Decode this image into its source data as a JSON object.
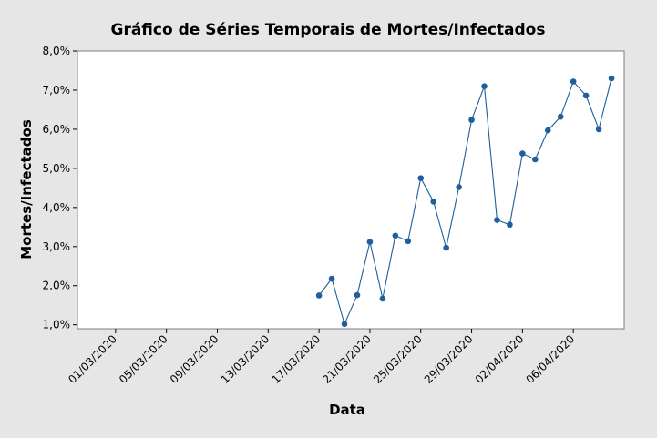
{
  "chart_data": {
    "type": "line",
    "title": "Gráfico de Séries Temporais de Mortes/Infectados",
    "xlabel": "Data",
    "ylabel": "Mortes/Infectados",
    "x_range": [
      "2020-02-27",
      "2020-04-10"
    ],
    "ylim": [
      0.9,
      8.0
    ],
    "yticks": [
      1.0,
      2.0,
      3.0,
      4.0,
      5.0,
      6.0,
      7.0,
      8.0
    ],
    "ytick_labels": [
      "1,0%",
      "2,0%",
      "3,0%",
      "4,0%",
      "5,0%",
      "6,0%",
      "7,0%",
      "8,0%"
    ],
    "xticks": [
      "2020-03-01",
      "2020-03-05",
      "2020-03-09",
      "2020-03-13",
      "2020-03-17",
      "2020-03-21",
      "2020-03-25",
      "2020-03-29",
      "2020-04-02",
      "2020-04-06"
    ],
    "xtick_labels": [
      "01/03/2020",
      "05/03/2020",
      "09/03/2020",
      "13/03/2020",
      "17/03/2020",
      "21/03/2020",
      "25/03/2020",
      "29/03/2020",
      "02/04/2020",
      "06/04/2020"
    ],
    "grid": false,
    "series": [
      {
        "color": "#1f5f9e",
        "points": [
          {
            "x": "2020-03-17",
            "y": 1.75
          },
          {
            "x": "2020-03-18",
            "y": 2.18
          },
          {
            "x": "2020-03-19",
            "y": 1.02
          },
          {
            "x": "2020-03-20",
            "y": 1.76
          },
          {
            "x": "2020-03-21",
            "y": 3.12
          },
          {
            "x": "2020-03-22",
            "y": 1.67
          },
          {
            "x": "2020-03-23",
            "y": 3.28
          },
          {
            "x": "2020-03-24",
            "y": 3.14
          },
          {
            "x": "2020-03-25",
            "y": 4.75
          },
          {
            "x": "2020-03-26",
            "y": 4.15
          },
          {
            "x": "2020-03-27",
            "y": 2.97
          },
          {
            "x": "2020-03-28",
            "y": 4.52
          },
          {
            "x": "2020-03-29",
            "y": 6.24
          },
          {
            "x": "2020-03-30",
            "y": 7.1
          },
          {
            "x": "2020-03-31",
            "y": 3.68
          },
          {
            "x": "2020-04-01",
            "y": 3.56
          },
          {
            "x": "2020-04-02",
            "y": 5.38
          },
          {
            "x": "2020-04-03",
            "y": 5.23
          },
          {
            "x": "2020-04-04",
            "y": 5.97
          },
          {
            "x": "2020-04-05",
            "y": 6.32
          },
          {
            "x": "2020-04-06",
            "y": 7.22
          },
          {
            "x": "2020-04-07",
            "y": 6.86
          },
          {
            "x": "2020-04-08",
            "y": 6.0
          },
          {
            "x": "2020-04-09",
            "y": 7.3
          }
        ]
      }
    ]
  }
}
